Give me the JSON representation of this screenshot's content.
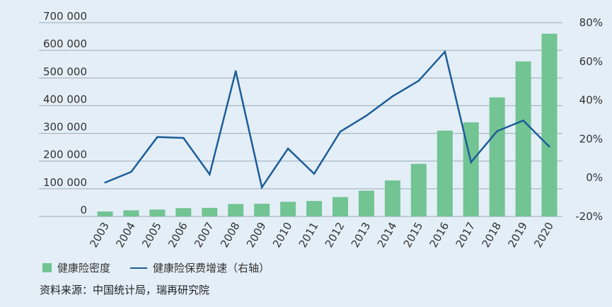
{
  "chart_data": {
    "type": "bar",
    "categories": [
      "2003",
      "2004",
      "2005",
      "2006",
      "2007",
      "2008",
      "2009",
      "2010",
      "2011",
      "2012",
      "2013",
      "2014",
      "2015",
      "2016",
      "2017",
      "2018",
      "2019",
      "2020"
    ],
    "series": [
      {
        "name": "健康险密度",
        "type": "bar",
        "axis": "left",
        "values": [
          18000,
          22000,
          25000,
          30000,
          31000,
          45000,
          46000,
          53000,
          56000,
          70000,
          93000,
          130000,
          190000,
          310000,
          340000,
          430000,
          560000,
          660000
        ]
      },
      {
        "name": "健康险保费增速（右轴）",
        "type": "line",
        "axis": "right",
        "values": [
          -0.025,
          0.03,
          0.21,
          0.205,
          0.017,
          0.55,
          -0.05,
          0.15,
          0.02,
          0.238,
          0.32,
          0.42,
          0.5,
          0.65,
          0.08,
          0.24,
          0.295,
          0.16
        ]
      }
    ],
    "y_left": {
      "ylim": [
        0,
        700000
      ],
      "ticks": [
        "700 000",
        "600 000",
        "500 000",
        "400 000",
        "300 000",
        "200 000",
        "100 000",
        "0"
      ]
    },
    "y_right": {
      "ylim": [
        -0.2,
        0.8
      ],
      "ticks": [
        "80%",
        "60%",
        "40%",
        "20%",
        "0%",
        "-20%"
      ]
    },
    "grid": true,
    "legend": "bottom-left"
  },
  "legend": {
    "bar_label": "健康险密度",
    "line_label": "健康险保费增速（右轴）"
  },
  "source": "资料来源：中国统计局，瑞再研究院",
  "colors": {
    "bar": "#72c493",
    "line": "#1d5d98",
    "grid": "#9aaab8",
    "background": "#e3eef7"
  }
}
